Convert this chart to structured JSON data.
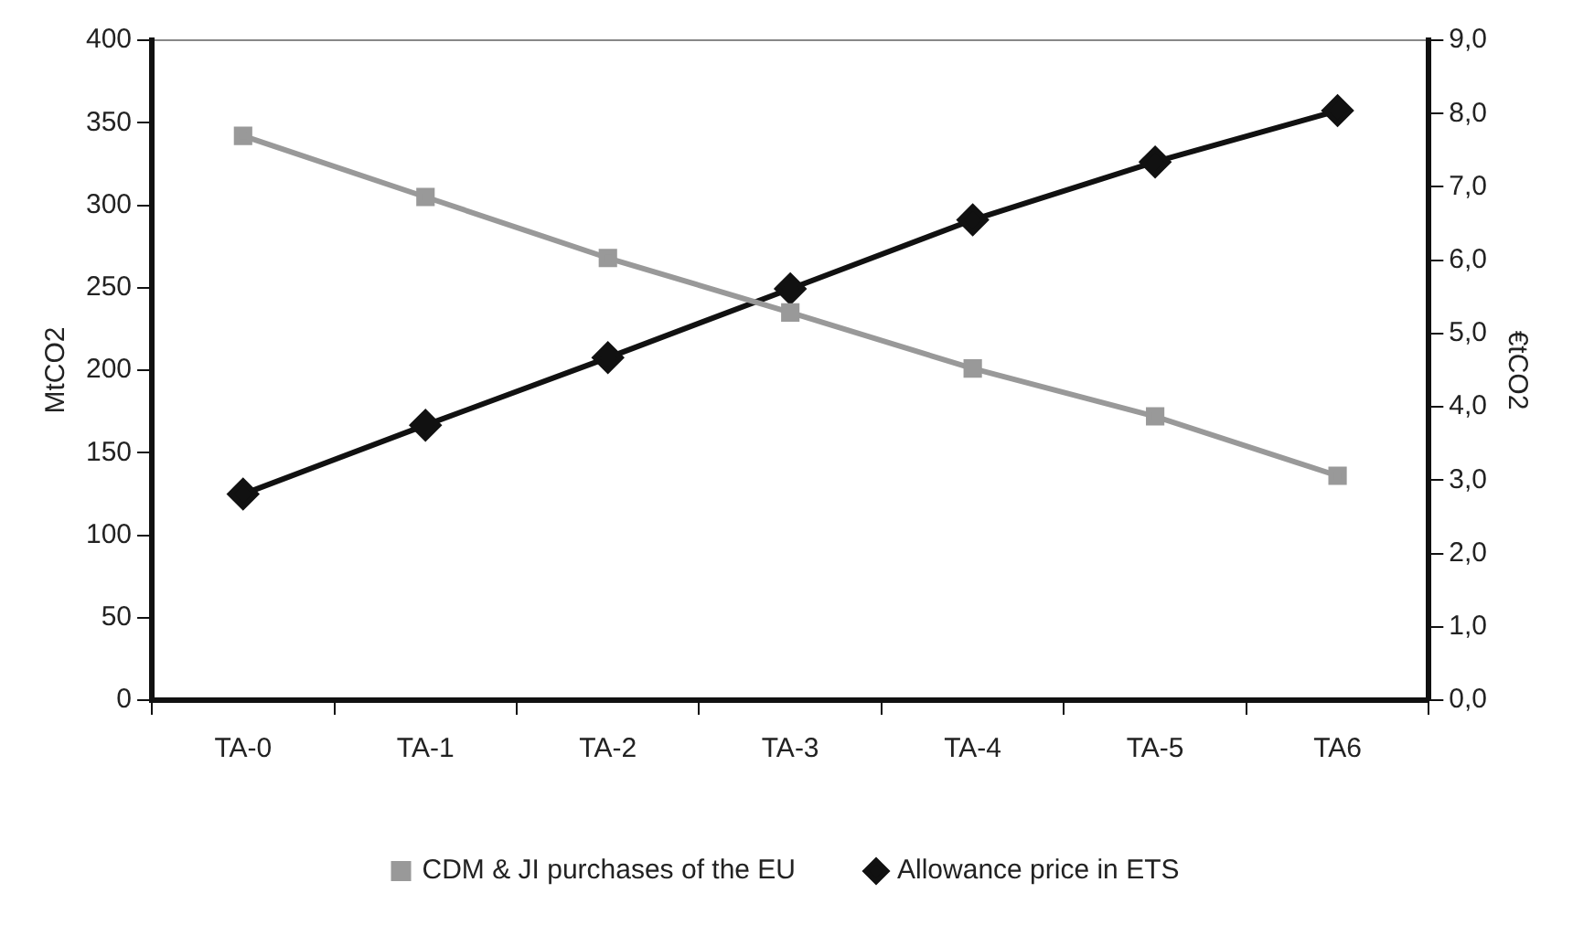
{
  "chart_data": {
    "type": "line",
    "categories": [
      "TA-0",
      "TA-1",
      "TA-2",
      "TA-3",
      "TA-4",
      "TA-5",
      "TA6"
    ],
    "ylabel": "MtCO2",
    "y2label": "€tCO2",
    "ylim": [
      0,
      400
    ],
    "yticks": [
      0,
      50,
      100,
      150,
      200,
      250,
      300,
      350,
      400
    ],
    "y2lim": [
      0,
      9
    ],
    "y2ticks": [
      {
        "value": 0,
        "label": "0,0"
      },
      {
        "value": 1,
        "label": "1,0"
      },
      {
        "value": 2,
        "label": "2,0"
      },
      {
        "value": 3,
        "label": "3,0"
      },
      {
        "value": 4,
        "label": "4,0"
      },
      {
        "value": 5,
        "label": "5,0"
      },
      {
        "value": 6,
        "label": "6,0"
      },
      {
        "value": 7,
        "label": "7,0"
      },
      {
        "value": 8,
        "label": "8,0"
      },
      {
        "value": 9,
        "label": "9,0"
      }
    ],
    "legend": "bottom",
    "series": [
      {
        "name": "CDM & JI purchases of the EU",
        "color": "#999999",
        "marker": "square",
        "values": [
          342,
          305,
          268,
          235,
          201,
          172,
          136
        ]
      },
      {
        "name": "Allowance price in ETS",
        "color": "#111111",
        "marker": "diamond",
        "axis": "y2",
        "values": [
          2.81,
          3.75,
          4.67,
          5.61,
          6.55,
          7.34,
          8.04
        ]
      }
    ]
  }
}
